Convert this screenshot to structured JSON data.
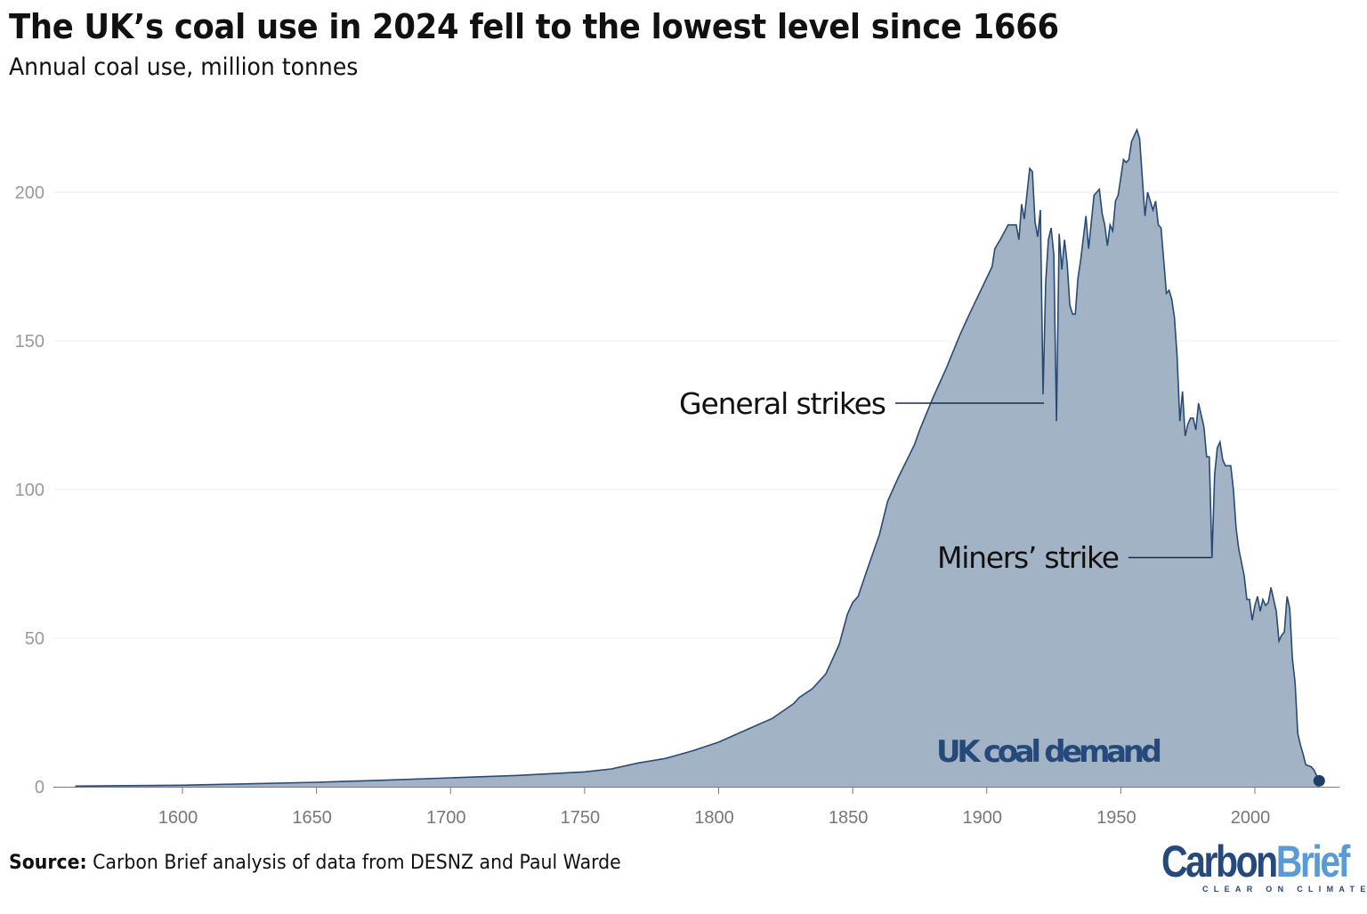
{
  "title": "The UK’s coal use in 2024 fell to the lowest level since 1666",
  "subtitle": "Annual coal use, million tonnes",
  "source_label": "Source:",
  "source_text": " Carbon Brief analysis of data from DESNZ and Paul Warde",
  "logo": {
    "part1": "Carbon",
    "part2": "Brief",
    "tagline": "CLEAR ON CLIMATE"
  },
  "colors": {
    "fill": "#a3b3c6",
    "line": "#284a74",
    "label": "#24497a",
    "grid": "#eeeeee",
    "tick_text": "#999999"
  },
  "chart_data": {
    "type": "area",
    "title": "The UK’s coal use in 2024 fell to the lowest level since 1666",
    "ylabel": "Annual coal use, million tonnes",
    "xlim": [
      1556,
      2034
    ],
    "ylim": [
      0,
      225
    ],
    "grid": true,
    "x_ticks": [
      1600,
      1650,
      1700,
      1750,
      1800,
      1850,
      1900,
      1950,
      2000
    ],
    "y_ticks": [
      0,
      50,
      100,
      150,
      200
    ],
    "series": [
      {
        "name": "UK coal demand",
        "x": [
          1560,
          1600,
          1625,
          1650,
          1675,
          1700,
          1725,
          1750,
          1760,
          1770,
          1780,
          1790,
          1800,
          1810,
          1820,
          1828,
          1830,
          1835,
          1840,
          1845,
          1848,
          1850,
          1852,
          1855,
          1860,
          1863,
          1867,
          1873,
          1875,
          1880,
          1885,
          1890,
          1893,
          1902,
          1903,
          1905,
          1908,
          1911,
          1912,
          1913,
          1914,
          1916,
          1917,
          1918,
          1919,
          1920,
          1921,
          1922,
          1923,
          1924,
          1925,
          1926,
          1927,
          1928,
          1929,
          1930,
          1931,
          1932,
          1933,
          1934,
          1935,
          1937,
          1938,
          1940,
          1942,
          1943,
          1944,
          1945,
          1946,
          1947,
          1948,
          1949,
          1951,
          1952,
          1953,
          1954,
          1956,
          1957,
          1959,
          1960,
          1962,
          1963,
          1964,
          1965,
          1967,
          1968,
          1969,
          1970,
          1971,
          1972,
          1973,
          1974,
          1975,
          1976,
          1977,
          1978,
          1979,
          1981,
          1982,
          1983,
          1984,
          1985,
          1986,
          1987,
          1988,
          1989,
          1991,
          1992,
          1993,
          1994,
          1996,
          1997,
          1998,
          1999,
          2000,
          2001,
          2002,
          2003,
          2004,
          2005,
          2006,
          2008,
          2009,
          2010,
          2011,
          2012,
          2013,
          2014,
          2015,
          2016,
          2017,
          2018,
          2019,
          2021,
          2022,
          2024
        ],
        "values": [
          0.2,
          0.5,
          1,
          1.5,
          2.2,
          3,
          3.8,
          5,
          6,
          8,
          9.5,
          12,
          15,
          19,
          23,
          28,
          30,
          33,
          38,
          48,
          58,
          62,
          64,
          72,
          85,
          96,
          104,
          115,
          120,
          131,
          141,
          152,
          158,
          175,
          181,
          184,
          189,
          189,
          184,
          196,
          191,
          208,
          207,
          190,
          185,
          194,
          132,
          170,
          184,
          188,
          179,
          123,
          186,
          174,
          184,
          176,
          162,
          159,
          159,
          171,
          177,
          192,
          181,
          199,
          201,
          193,
          189,
          182,
          189,
          187,
          197,
          199,
          211,
          210,
          211,
          217,
          221,
          218,
          192,
          200,
          194,
          197,
          189,
          188,
          166,
          167,
          164,
          158,
          145,
          123,
          133,
          118,
          122,
          124,
          124,
          120,
          129,
          121,
          111,
          111,
          77,
          105,
          114,
          116,
          110,
          108,
          108,
          100,
          87,
          80,
          71,
          63,
          63,
          56,
          61,
          64,
          59,
          63,
          61,
          62,
          67,
          59,
          49,
          51,
          52,
          64,
          60,
          43,
          35,
          18,
          14,
          11,
          7.4,
          6.7,
          5.7,
          2.0
        ]
      }
    ],
    "annotations": [
      {
        "text": "General strikes",
        "years": [
          1921,
          1926
        ]
      },
      {
        "text": "Miners’ strike",
        "year": 1984
      },
      {
        "text": "UK coal demand"
      }
    ]
  }
}
